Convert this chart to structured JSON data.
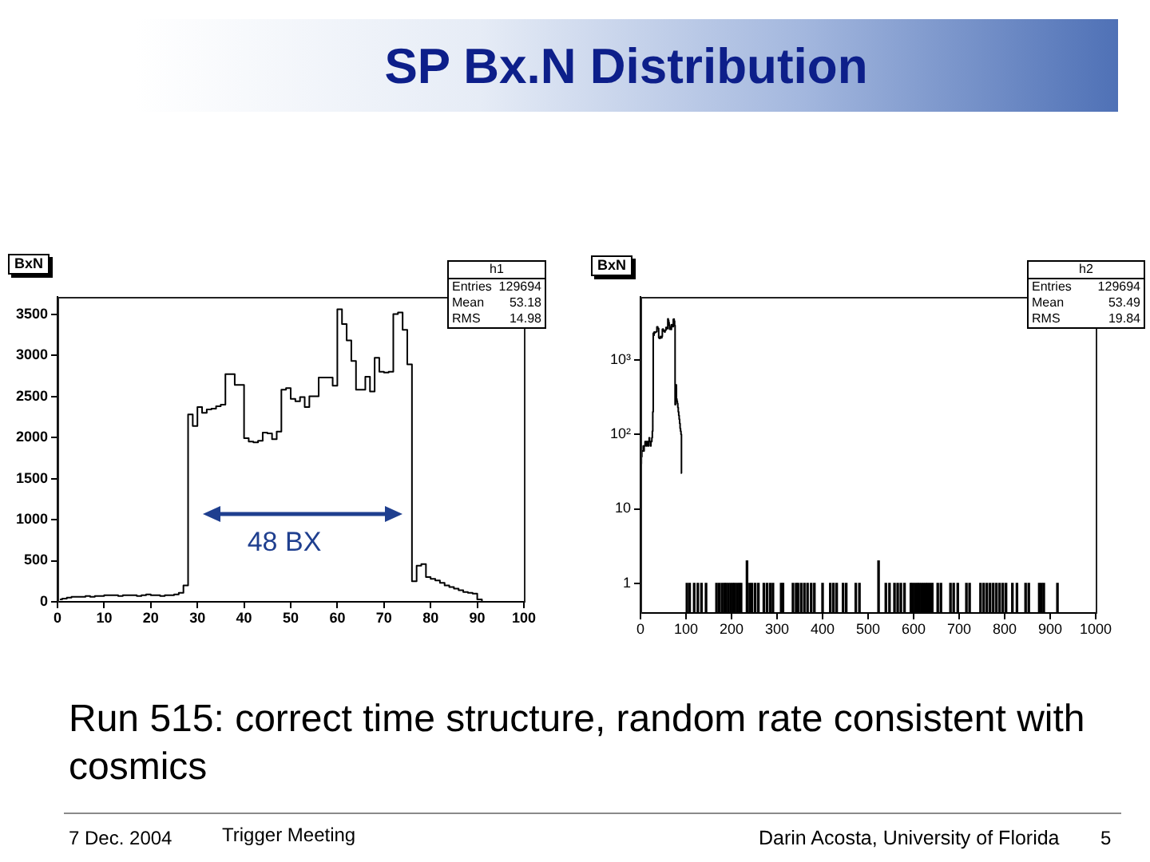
{
  "chart_data": [
    {
      "type": "other",
      "title": "SP Bx.N Distribution",
      "annotations": [
        "Run 515: correct time structure, random rate consistent with cosmics",
        "7 Dec. 2004",
        "Trigger Meeting",
        "Darin Acosta, University of Florida",
        "5"
      ]
    },
    {
      "type": "step",
      "title": "BxN",
      "color": "#000000",
      "x": [
        0.5,
        1.5,
        2.5,
        3.5,
        4.5,
        5.5,
        6.5,
        7.5,
        8.5,
        9.5,
        10.5,
        11.5,
        12.5,
        13.5,
        14.5,
        15.5,
        16.5,
        17.5,
        18.5,
        19.5,
        20.5,
        21.5,
        22.5,
        23.5,
        24.5,
        25.5,
        26.5,
        27.5,
        28.5,
        29.5,
        30.5,
        31.5,
        32.5,
        33.5,
        34.5,
        35.5,
        36.5,
        37.5,
        38.5,
        39.5,
        40.5,
        41.5,
        42.5,
        43.5,
        44.5,
        45.5,
        46.5,
        47.5,
        48.5,
        49.5,
        50.5,
        51.5,
        52.5,
        53.5,
        54.5,
        55.5,
        56.5,
        57.5,
        58.5,
        59.5,
        60.5,
        61.5,
        62.5,
        63.5,
        64.5,
        65.5,
        66.5,
        67.5,
        68.5,
        69.5,
        70.5,
        71.5,
        72.5,
        73.5,
        74.5,
        75.5,
        76.5,
        77.5,
        78.5,
        79.5,
        80.5,
        81.5,
        82.5,
        83.5,
        84.5,
        85.5,
        86.5,
        87.5,
        88.5,
        89.5,
        90.5,
        91.5,
        92.5,
        93.5,
        94.5,
        95.5,
        96.5,
        97.5,
        98.5,
        99.5
      ],
      "values": [
        30,
        40,
        50,
        60,
        60,
        60,
        70,
        60,
        70,
        70,
        80,
        80,
        80,
        70,
        80,
        80,
        80,
        70,
        80,
        90,
        80,
        80,
        70,
        80,
        80,
        90,
        110,
        200,
        2280,
        2140,
        2370,
        2300,
        2340,
        2350,
        2380,
        2400,
        2770,
        2770,
        2640,
        2640,
        1990,
        1950,
        1940,
        1960,
        2060,
        2050,
        1980,
        2070,
        2580,
        2600,
        2470,
        2440,
        2490,
        2370,
        2500,
        2500,
        2730,
        2730,
        2730,
        2630,
        3560,
        3380,
        3180,
        2930,
        2580,
        2580,
        2740,
        2560,
        2970,
        2800,
        2790,
        2800,
        3500,
        3520,
        3310,
        2890,
        250,
        440,
        460,
        300,
        280,
        260,
        230,
        200,
        180,
        160,
        140,
        120,
        110,
        100,
        30,
        0,
        0,
        0,
        0,
        0,
        0,
        0,
        0,
        0
      ],
      "xlim": [
        0,
        100
      ],
      "ylim": [
        0,
        3710
      ],
      "xticks": [
        0,
        10,
        20,
        30,
        40,
        50,
        60,
        70,
        80,
        90,
        100
      ],
      "yticks": [
        0,
        500,
        1000,
        1500,
        2000,
        2500,
        3000,
        3500
      ],
      "annotations": [
        "48 BX",
        "h1",
        "Entries",
        "129694",
        "Mean",
        "53.18",
        "RMS",
        "14.98"
      ]
    },
    {
      "type": "step",
      "title": "BxN",
      "log": "y",
      "series": [
        {
          "type": "step",
          "color": "#000000",
          "x": [
            0.5,
            1.5,
            2.5,
            3.5,
            4.5,
            5.5,
            6.5,
            7.5,
            8.5,
            9.5,
            10.5,
            11.5,
            12.5,
            13.5,
            14.5,
            15.5,
            16.5,
            17.5,
            18.5,
            19.5,
            20.5,
            21.5,
            22.5,
            23.5,
            24.5,
            25.5,
            26.5,
            27.5,
            28.5,
            29.5,
            30.5,
            31.5,
            32.5,
            33.5,
            34.5,
            35.5,
            36.5,
            37.5,
            38.5,
            39.5,
            40.5,
            41.5,
            42.5,
            43.5,
            44.5,
            45.5,
            46.5,
            47.5,
            48.5,
            49.5,
            50.5,
            51.5,
            52.5,
            53.5,
            54.5,
            55.5,
            56.5,
            57.5,
            58.5,
            59.5,
            60.5,
            61.5,
            62.5,
            63.5,
            64.5,
            65.5,
            66.5,
            67.5,
            68.5,
            69.5,
            70.5,
            71.5,
            72.5,
            73.5,
            74.5,
            75.5,
            76.5,
            77.5,
            78.5,
            79.5,
            80.5,
            81.5,
            82.5,
            83.5,
            84.5,
            85.5,
            86.5,
            87.5,
            88.5,
            89.5,
            90.5
          ],
          "values": [
            30,
            40,
            50,
            60,
            60,
            60,
            70,
            60,
            70,
            70,
            80,
            80,
            80,
            70,
            80,
            80,
            80,
            70,
            80,
            90,
            80,
            80,
            70,
            80,
            80,
            90,
            110,
            200,
            2280,
            2140,
            2370,
            2300,
            2340,
            2350,
            2380,
            2400,
            2770,
            2770,
            2640,
            2640,
            1990,
            1950,
            1940,
            1960,
            2060,
            2050,
            1980,
            2070,
            2580,
            2600,
            2470,
            2440,
            2490,
            2370,
            2500,
            2500,
            2730,
            2730,
            2730,
            2630,
            3560,
            3380,
            3180,
            2930,
            2580,
            2580,
            2740,
            2560,
            2970,
            2800,
            2790,
            2800,
            3500,
            3520,
            3310,
            2890,
            250,
            440,
            460,
            300,
            280,
            260,
            230,
            200,
            180,
            160,
            140,
            120,
            110,
            100,
            30
          ]
        },
        {
          "type": "bar",
          "color": "#000000",
          "x": [
            102,
            108,
            118,
            126,
            134,
            144,
            167,
            173,
            179,
            184,
            188,
            193,
            198,
            203,
            207,
            212,
            217,
            221,
            234,
            240,
            245,
            252,
            259,
            271,
            278,
            285,
            291,
            309,
            313,
            335,
            342,
            346,
            353,
            360,
            367,
            375,
            382,
            400,
            417,
            424,
            431,
            445,
            452,
            473,
            481,
            523,
            539,
            547,
            558,
            565,
            572,
            580,
            594,
            598,
            603,
            608,
            612,
            617,
            622,
            627,
            631,
            636,
            641,
            653,
            660,
            681,
            688,
            697,
            716,
            723,
            747,
            754,
            761,
            768,
            775,
            782,
            789,
            796,
            803,
            817,
            827,
            846,
            853,
            876,
            881,
            886,
            916
          ],
          "values": [
            1,
            1,
            1,
            1,
            1,
            1,
            1,
            1,
            1,
            1,
            1,
            1,
            1,
            1,
            1,
            1,
            1,
            1,
            2,
            1,
            1,
            1,
            1,
            1,
            1,
            1,
            1,
            1,
            1,
            1,
            1,
            1,
            1,
            1,
            1,
            1,
            1,
            1,
            1,
            1,
            1,
            1,
            1,
            1,
            1,
            2,
            1,
            1,
            1,
            1,
            1,
            1,
            1,
            1,
            1,
            1,
            1,
            1,
            1,
            1,
            1,
            1,
            1,
            1,
            1,
            1,
            1,
            1,
            1,
            1,
            1,
            1,
            1,
            1,
            1,
            1,
            1,
            1,
            1,
            1,
            1,
            1,
            1,
            1,
            1,
            1,
            1
          ]
        }
      ],
      "xlim": [
        0,
        1000
      ],
      "ylim": [
        0.4,
        7000
      ],
      "xticks": [
        0,
        100,
        200,
        300,
        400,
        500,
        600,
        700,
        800,
        900,
        1000
      ],
      "yticks": [
        1,
        10,
        {
          "value": 100,
          "label": "10²"
        },
        {
          "value": 1000,
          "label": "10³"
        }
      ],
      "annotations": [
        "h2",
        "Entries",
        "129694",
        "Mean",
        "53.49",
        "RMS",
        "19.84"
      ]
    }
  ]
}
